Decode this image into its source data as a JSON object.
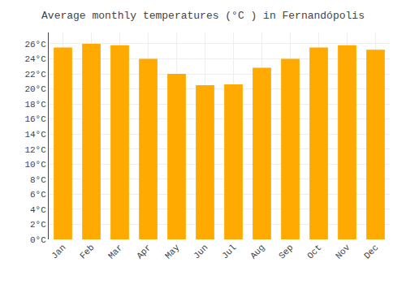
{
  "chart_data": {
    "type": "bar",
    "title": "Average monthly temperatures (°C ) in Fernandópolis",
    "categories": [
      "Jan",
      "Feb",
      "Mar",
      "Apr",
      "May",
      "Jun",
      "Jul",
      "Aug",
      "Sep",
      "Oct",
      "Nov",
      "Dec"
    ],
    "values": [
      25.5,
      26.0,
      25.8,
      24.0,
      22.0,
      20.5,
      20.6,
      22.8,
      24.0,
      25.5,
      25.8,
      25.2
    ],
    "color": "#FFAA00",
    "ylim": [
      0,
      27.5
    ],
    "yticks": [
      {
        "value": 0,
        "label": "0°C"
      },
      {
        "value": 2,
        "label": "2°C"
      },
      {
        "value": 4,
        "label": "4°C"
      },
      {
        "value": 6,
        "label": "6°C"
      },
      {
        "value": 8,
        "label": "8°C"
      },
      {
        "value": 10,
        "label": "10°C"
      },
      {
        "value": 12,
        "label": "12°C"
      },
      {
        "value": 14,
        "label": "14°C"
      },
      {
        "value": 16,
        "label": "16°C"
      },
      {
        "value": 18,
        "label": "18°C"
      },
      {
        "value": 20,
        "label": "20°C"
      },
      {
        "value": 22,
        "label": "22°C"
      },
      {
        "value": 24,
        "label": "24°C"
      },
      {
        "value": 26,
        "label": "26°C"
      }
    ],
    "grid": true
  }
}
